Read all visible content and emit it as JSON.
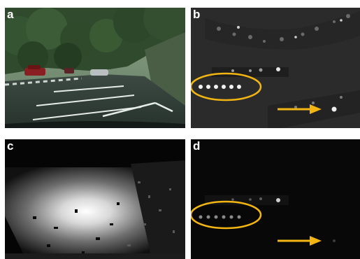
{
  "panels": [
    {
      "id": "a",
      "label": "a"
    },
    {
      "id": "b",
      "label": "b"
    },
    {
      "id": "c",
      "label": "c"
    },
    {
      "id": "d",
      "label": "d"
    }
  ],
  "colors": {
    "highlight": "#f2b511",
    "background": "#ffffff"
  },
  "icons": [
    "ellipse-highlight",
    "arrow-right-icon"
  ]
}
